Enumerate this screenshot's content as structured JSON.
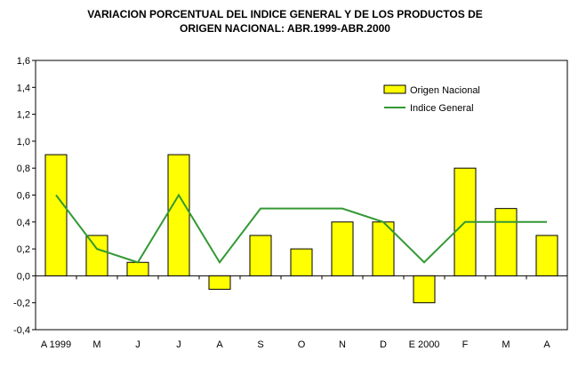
{
  "title_line1": "VARIACION PORCENTUAL DEL INDICE GENERAL Y DE LOS PRODUCTOS DE",
  "title_line2": "ORIGEN NACIONAL: ABR.1999-ABR.2000",
  "chart_data": {
    "type": "bar",
    "title": "VARIACION PORCENTUAL DEL INDICE GENERAL Y DE LOS PRODUCTOS DE ORIGEN NACIONAL: ABR.1999-ABR.2000",
    "categories": [
      "A 1999",
      "M",
      "J",
      "J",
      "A",
      "S",
      "O",
      "N",
      "D",
      "E 2000",
      "F",
      "M",
      "A"
    ],
    "series": [
      {
        "name": "Origen Nacional",
        "type": "bar",
        "color": "#FFFF00",
        "values": [
          0.9,
          0.3,
          0.1,
          0.9,
          -0.1,
          0.3,
          0.2,
          0.4,
          0.4,
          -0.2,
          0.8,
          0.5,
          0.3
        ]
      },
      {
        "name": "Indice General",
        "type": "line",
        "color": "#339933",
        "values": [
          0.6,
          0.2,
          0.1,
          0.6,
          0.1,
          0.5,
          0.5,
          0.5,
          0.4,
          0.1,
          0.4,
          0.4,
          0.4
        ]
      }
    ],
    "ylim": [
      -0.4,
      1.6
    ],
    "yticks": [
      "1,6",
      "1,4",
      "1,2",
      "1,0",
      "0,8",
      "0,6",
      "0,4",
      "0,2",
      "0,0",
      "-0,2",
      "-0,4"
    ],
    "xlabel": "",
    "ylabel": "",
    "legend_position": "top-right",
    "grid": false
  }
}
